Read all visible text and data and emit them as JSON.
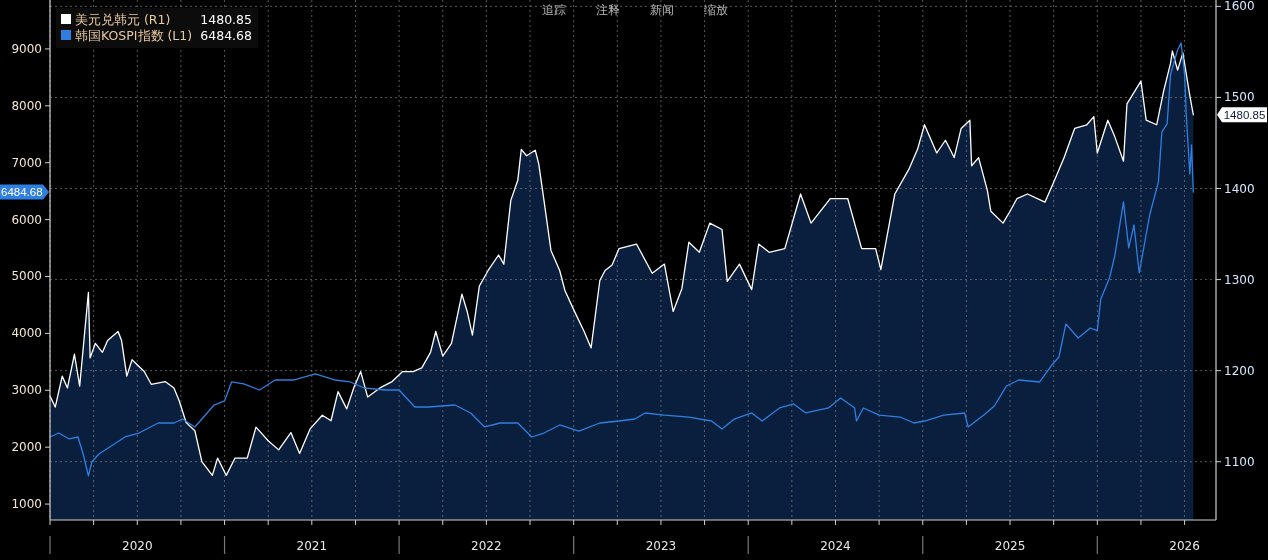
{
  "chart_data": {
    "type": "line",
    "legend": "top left",
    "grid": true,
    "annotations": [
      "追踪",
      "注释",
      "新闻",
      "缩放",
      "1480.85",
      "6484.68",
      "1480.85",
      "6484.68"
    ],
    "xlim": [
      2020.0,
      2026.68
    ],
    "xticks": [
      {
        "value": 2020,
        "label": null
      },
      {
        "value": 2020.25,
        "label": null
      },
      {
        "value": 2020.5,
        "label": "2020"
      },
      {
        "value": 2020.75,
        "label": null
      },
      {
        "value": 2021,
        "label": null
      },
      {
        "value": 2021.25,
        "label": null
      },
      {
        "value": 2021.5,
        "label": "2021"
      },
      {
        "value": 2021.75,
        "label": null
      },
      {
        "value": 2022,
        "label": null
      },
      {
        "value": 2022.25,
        "label": null
      },
      {
        "value": 2022.5,
        "label": "2022"
      },
      {
        "value": 2022.75,
        "label": null
      },
      {
        "value": 2023,
        "label": null
      },
      {
        "value": 2023.25,
        "label": null
      },
      {
        "value": 2023.5,
        "label": "2023"
      },
      {
        "value": 2023.75,
        "label": null
      },
      {
        "value": 2024,
        "label": null
      },
      {
        "value": 2024.25,
        "label": null
      },
      {
        "value": 2024.5,
        "label": "2024"
      },
      {
        "value": 2024.75,
        "label": null
      },
      {
        "value": 2025,
        "label": null
      },
      {
        "value": 2025.25,
        "label": null
      },
      {
        "value": 2025.5,
        "label": "2025"
      },
      {
        "value": 2025.75,
        "label": null
      },
      {
        "value": 2026,
        "label": null
      },
      {
        "value": 2026.25,
        "label": null
      },
      {
        "value": 2026.5,
        "label": "2026"
      }
    ],
    "ylim": [
      720,
      9860
    ],
    "yticks": [
      1000,
      2000,
      3000,
      4000,
      5000,
      6000,
      7000,
      8000,
      9000
    ],
    "y2lim": [
      1036,
      1607
    ],
    "y2ticks": [
      1100,
      1200,
      1300,
      1400,
      1500,
      1600
    ],
    "series": [
      {
        "name": "美元兑韩元 (R1)",
        "color": "#ffffff",
        "type": "area",
        "axis": "y2",
        "x": [
          2020.0,
          2020.03,
          2020.07,
          2020.1,
          2020.14,
          2020.17,
          2020.22,
          2020.23,
          2020.26,
          2020.3,
          2020.33,
          2020.39,
          2020.41,
          2020.44,
          2020.47,
          2020.54,
          2020.58,
          2020.66,
          2020.71,
          2020.74,
          2020.78,
          2020.83,
          2020.87,
          2020.93,
          2020.96,
          2021.01,
          2021.06,
          2021.13,
          2021.18,
          2021.25,
          2021.31,
          2021.38,
          2021.43,
          2021.49,
          2021.56,
          2021.61,
          2021.65,
          2021.7,
          2021.74,
          2021.78,
          2021.82,
          2021.89,
          2021.96,
          2022.02,
          2022.08,
          2022.13,
          2022.18,
          2022.21,
          2022.25,
          2022.3,
          2022.36,
          2022.39,
          2022.42,
          2022.46,
          2022.51,
          2022.57,
          2022.6,
          2022.64,
          2022.68,
          2022.7,
          2022.73,
          2022.78,
          2022.8,
          2022.83,
          2022.87,
          2022.92,
          2022.95,
          2023.0,
          2023.06,
          2023.1,
          2023.15,
          2023.18,
          2023.22,
          2023.26,
          2023.36,
          2023.45,
          2023.52,
          2023.57,
          2023.62,
          2023.66,
          2023.72,
          2023.78,
          2023.85,
          2023.88,
          2023.95,
          2024.02,
          2024.06,
          2024.12,
          2024.21,
          2024.3,
          2024.36,
          2024.47,
          2024.57,
          2024.65,
          2024.73,
          2024.76,
          2024.84,
          2024.92,
          2024.97,
          2025.01,
          2025.08,
          2025.13,
          2025.18,
          2025.22,
          2025.27,
          2025.28,
          2025.32,
          2025.37,
          2025.39,
          2025.46,
          2025.5,
          2025.54,
          2025.6,
          2025.7,
          2025.75,
          2025.81,
          2025.87,
          2025.94,
          2025.98,
          2026.0,
          2026.06,
          2026.1,
          2026.15,
          2026.17,
          2026.25,
          2026.28,
          2026.34,
          2026.38,
          2026.42,
          2026.43,
          2026.46,
          2026.49,
          2026.53,
          2026.55
        ],
        "values": [
          1172,
          1160,
          1194,
          1181,
          1218,
          1183,
          1286,
          1214,
          1230,
          1220,
          1233,
          1243,
          1233,
          1194,
          1212,
          1199,
          1185,
          1188,
          1181,
          1167,
          1143,
          1134,
          1100,
          1085,
          1104,
          1085,
          1104,
          1104,
          1138,
          1123,
          1113,
          1132,
          1109,
          1136,
          1151,
          1145,
          1177,
          1158,
          1181,
          1199,
          1171,
          1181,
          1188,
          1199,
          1199,
          1203,
          1220,
          1243,
          1216,
          1230,
          1284,
          1265,
          1239,
          1293,
          1310,
          1327,
          1317,
          1387,
          1409,
          1443,
          1436,
          1442,
          1427,
          1387,
          1332,
          1310,
          1288,
          1267,
          1243,
          1225,
          1299,
          1310,
          1316,
          1334,
          1339,
          1307,
          1317,
          1265,
          1290,
          1341,
          1330,
          1362,
          1355,
          1298,
          1317,
          1289,
          1339,
          1330,
          1334,
          1394,
          1362,
          1389,
          1389,
          1334,
          1334,
          1311,
          1394,
          1421,
          1443,
          1470,
          1439,
          1453,
          1434,
          1466,
          1475,
          1425,
          1434,
          1398,
          1375,
          1362,
          1375,
          1389,
          1394,
          1385,
          1407,
          1434,
          1466,
          1470,
          1479,
          1439,
          1475,
          1457,
          1430,
          1493,
          1518,
          1475,
          1470,
          1507,
          1538,
          1551,
          1530,
          1549,
          1502,
          1481
        ]
      },
      {
        "name": "韩国KOSPI指数 (L1)",
        "color": "#2f7fe0",
        "type": "line",
        "x": [
          2020.0,
          2020.05,
          2020.11,
          2020.16,
          2020.19,
          2020.22,
          2020.24,
          2020.28,
          2020.36,
          2020.43,
          2020.51,
          2020.62,
          2020.71,
          2020.76,
          2020.83,
          2020.88,
          2020.94,
          2021.0,
          2021.04,
          2021.11,
          2021.2,
          2021.29,
          2021.4,
          2021.52,
          2021.63,
          2021.72,
          2021.8,
          2021.92,
          2022.0,
          2022.09,
          2022.17,
          2022.32,
          2022.41,
          2022.49,
          2022.58,
          2022.68,
          2022.76,
          2022.83,
          2022.92,
          2023.03,
          2023.15,
          2023.26,
          2023.35,
          2023.41,
          2023.52,
          2023.66,
          2023.79,
          2023.85,
          2023.92,
          2024.02,
          2024.08,
          2024.18,
          2024.26,
          2024.33,
          2024.46,
          2024.53,
          2024.61,
          2024.62,
          2024.66,
          2024.75,
          2024.87,
          2024.95,
          2025.01,
          2025.12,
          2025.24,
          2025.26,
          2025.35,
          2025.41,
          2025.48,
          2025.55,
          2025.67,
          2025.74,
          2025.78,
          2025.82,
          2025.89,
          2025.96,
          2026.0,
          2026.02,
          2026.07,
          2026.1,
          2026.15,
          2026.18,
          2026.21,
          2026.24,
          2026.3,
          2026.35,
          2026.37,
          2026.4,
          2026.42,
          2026.46,
          2026.48,
          2026.5,
          2026.51,
          2026.53,
          2026.54,
          2026.55
        ],
        "values": [
          2179,
          2249,
          2144,
          2179,
          1880,
          1494,
          1740,
          1880,
          2038,
          2179,
          2249,
          2425,
          2425,
          2495,
          2355,
          2530,
          2741,
          2812,
          3146,
          3111,
          3005,
          3181,
          3181,
          3287,
          3181,
          3146,
          3040,
          3005,
          3005,
          2706,
          2706,
          2741,
          2601,
          2355,
          2425,
          2425,
          2179,
          2249,
          2390,
          2284,
          2425,
          2460,
          2495,
          2601,
          2565,
          2530,
          2460,
          2320,
          2495,
          2601,
          2460,
          2689,
          2759,
          2601,
          2689,
          2865,
          2689,
          2460,
          2689,
          2565,
          2530,
          2425,
          2460,
          2565,
          2601,
          2355,
          2565,
          2724,
          3076,
          3181,
          3146,
          3445,
          3585,
          4166,
          3919,
          4095,
          4050,
          4605,
          4974,
          5361,
          6310,
          5502,
          5906,
          5062,
          6081,
          6662,
          7541,
          7681,
          8560,
          8982,
          9105,
          8560,
          7822,
          6803,
          7312,
          6485
        ]
      }
    ]
  }
}
